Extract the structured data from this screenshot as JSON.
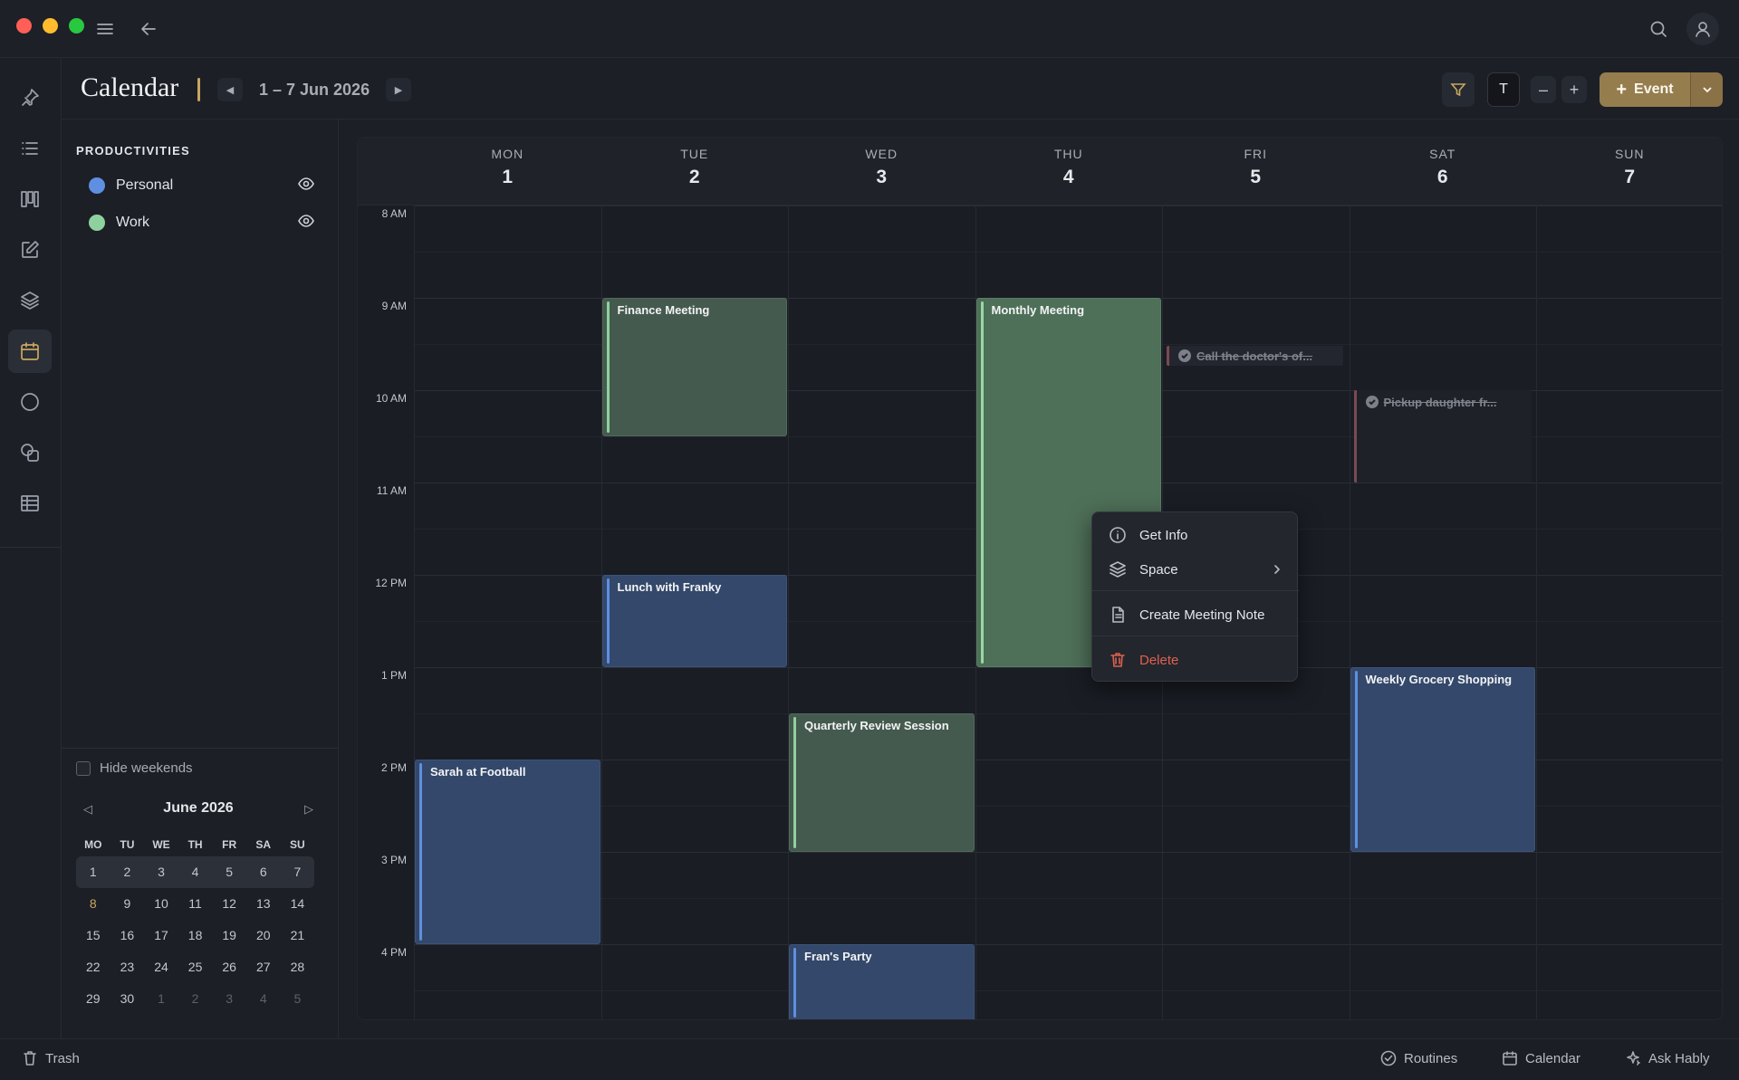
{
  "window": {
    "controls": [
      "close",
      "minimize",
      "maximize"
    ]
  },
  "header": {
    "title": "Calendar",
    "range": "1 – 7 Jun 2026",
    "filter_icon": "filter-icon",
    "t_label": "T",
    "zoom_out": "–",
    "zoom_in": "+",
    "new_event_label": "Event",
    "accent": "#c9a760"
  },
  "rail": {
    "items": [
      "pin-icon",
      "list-icon",
      "board-icon",
      "edit-icon",
      "layers-icon",
      "calendar-icon",
      "circle-icon",
      "shapes-icon",
      "table-icon"
    ],
    "active": "calendar-icon"
  },
  "sidebar": {
    "heading": "PRODUCTIVITIES",
    "calendars": [
      {
        "name": "Personal",
        "color": "#5f8fe0"
      },
      {
        "name": "Work",
        "color": "#8fd19e"
      }
    ],
    "hide_weekends": "Hide weekends",
    "mini_month": {
      "title": "June 2026",
      "dow": [
        "MO",
        "TU",
        "WE",
        "TH",
        "FR",
        "SA",
        "SU"
      ],
      "weeks": [
        [
          "1",
          "2",
          "3",
          "4",
          "5",
          "6",
          "7"
        ],
        [
          "8",
          "9",
          "10",
          "11",
          "12",
          "13",
          "14"
        ],
        [
          "15",
          "16",
          "17",
          "18",
          "19",
          "20",
          "21"
        ],
        [
          "22",
          "23",
          "24",
          "25",
          "26",
          "27",
          "28"
        ],
        [
          "29",
          "30",
          "1",
          "2",
          "3",
          "4",
          "5"
        ]
      ],
      "today": "8"
    }
  },
  "week": {
    "days": [
      {
        "dow": "MON",
        "dom": "1"
      },
      {
        "dow": "TUE",
        "dom": "2"
      },
      {
        "dow": "WED",
        "dom": "3"
      },
      {
        "dow": "THU",
        "dom": "4"
      },
      {
        "dow": "FRI",
        "dom": "5"
      },
      {
        "dow": "SAT",
        "dom": "6"
      },
      {
        "dow": "SUN",
        "dom": "7"
      }
    ],
    "times": [
      "8 AM",
      "9 AM",
      "10 AM",
      "11 AM",
      "12 PM",
      "1 PM",
      "2 PM",
      "3 PM",
      "4 PM"
    ],
    "events": [
      {
        "title": "Finance Meeting",
        "calendar": "Work",
        "day": "TUE",
        "start": "9:00",
        "end": "10:30"
      },
      {
        "title": "Monthly Meeting",
        "calendar": "Work",
        "day": "THU",
        "start": "9:00",
        "end": "13:00"
      },
      {
        "title": "Lunch with Franky",
        "calendar": "Personal",
        "day": "TUE",
        "start": "12:00",
        "end": "13:00"
      },
      {
        "title": "Weekly Grocery Shopping",
        "calendar": "Personal",
        "day": "SAT",
        "start": "13:00",
        "end": "15:00"
      },
      {
        "title": "Quarterly Review Session",
        "calendar": "Work",
        "day": "WED",
        "start": "13:30",
        "end": "15:00"
      },
      {
        "title": "Sarah at Football",
        "calendar": "Personal",
        "day": "MON",
        "start": "14:00",
        "end": "16:00"
      },
      {
        "title": "Fran's Party",
        "calendar": "Personal",
        "day": "WED",
        "start": "16:00",
        "end": "17:00"
      }
    ],
    "tasks": [
      {
        "title": "Call the doctor's of...",
        "day": "FRI",
        "done": true
      },
      {
        "title": "Pickup daughter fr...",
        "day": "SAT",
        "done": true
      }
    ]
  },
  "context_menu": {
    "items": [
      {
        "label": "Get Info",
        "icon": "info-icon"
      },
      {
        "label": "Space",
        "icon": "layers-icon",
        "submenu": true
      },
      {
        "label": "Create Meeting Note",
        "icon": "document-icon"
      },
      {
        "label": "Delete",
        "icon": "trash-icon",
        "danger": true
      }
    ]
  },
  "footer": {
    "trash": "Trash",
    "routines": "Routines",
    "calendar": "Calendar",
    "ask": "Ask Hably"
  }
}
